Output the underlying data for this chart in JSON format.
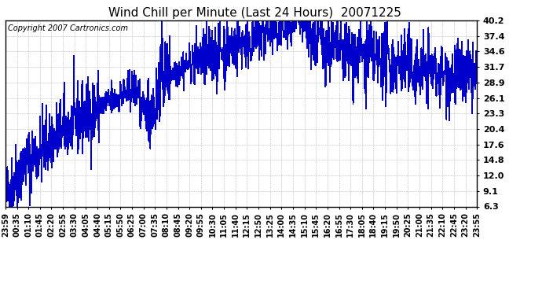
{
  "title": "Wind Chill per Minute (Last 24 Hours)  20071225",
  "copyright_text": "Copyright 2007 Cartronics.com",
  "yticks": [
    6.3,
    9.1,
    12.0,
    14.8,
    17.6,
    20.4,
    23.3,
    26.1,
    28.9,
    31.7,
    34.6,
    37.4,
    40.2
  ],
  "ylim_min": 6.3,
  "ylim_max": 40.2,
  "xtick_labels": [
    "23:59",
    "00:35",
    "01:10",
    "01:45",
    "02:20",
    "02:55",
    "03:30",
    "04:05",
    "04:40",
    "05:15",
    "05:50",
    "06:25",
    "07:00",
    "07:35",
    "08:10",
    "08:45",
    "09:20",
    "09:55",
    "10:30",
    "11:05",
    "11:40",
    "12:15",
    "12:50",
    "13:25",
    "14:00",
    "14:35",
    "15:10",
    "15:45",
    "16:20",
    "16:55",
    "17:30",
    "18:05",
    "18:40",
    "19:15",
    "19:50",
    "20:25",
    "21:00",
    "21:35",
    "22:10",
    "22:45",
    "23:20",
    "23:55"
  ],
  "line_color": "#0000cc",
  "background_color": "#ffffff",
  "grid_color": "#aaaaaa",
  "title_fontsize": 11,
  "copyright_fontsize": 7,
  "tick_fontsize": 8
}
